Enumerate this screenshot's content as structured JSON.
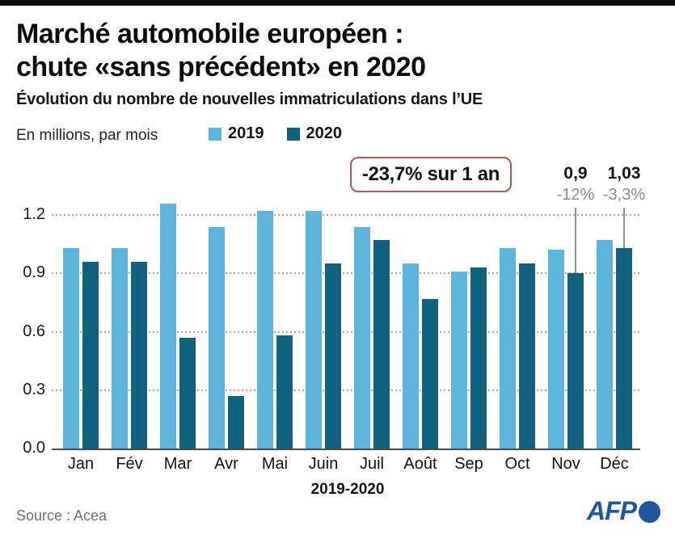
{
  "header": {
    "title_line1": "Marché automobile européen :",
    "title_line2": "chute «sans précédent» en 2020",
    "subtitle": "Évolution du nombre de nouvelles immatriculations dans l’UE",
    "units_label": "En millions, par mois"
  },
  "legend": {
    "items": [
      {
        "label": "2019",
        "color": "#5BB5DC"
      },
      {
        "label": "2020",
        "color": "#10607F"
      }
    ]
  },
  "annotation_box": {
    "text": "-23,7% sur 1 an",
    "border_color": "#B3594C"
  },
  "chart_data": {
    "type": "bar",
    "title": "Marché automobile européen : chute «sans précédent» en 2020",
    "categories": [
      "Jan",
      "Fév",
      "Mar",
      "Avr",
      "Mai",
      "Juin",
      "Juil",
      "Août",
      "Sep",
      "Oct",
      "Nov",
      "Déc"
    ],
    "series": [
      {
        "name": "2019",
        "color": "#5BB5DC",
        "values": [
          1.03,
          1.03,
          1.26,
          1.14,
          1.22,
          1.22,
          1.14,
          0.95,
          0.91,
          1.03,
          1.02,
          1.07
        ]
      },
      {
        "name": "2020",
        "color": "#10607F",
        "values": [
          0.96,
          0.96,
          0.57,
          0.27,
          0.58,
          0.95,
          1.07,
          0.77,
          0.93,
          0.95,
          0.9,
          1.03
        ]
      }
    ],
    "ylabel": "En millions, par mois",
    "xlabel": "2019-2020",
    "yticks": [
      1.2,
      0.9,
      0.6,
      0.3,
      0.0
    ],
    "ylim": [
      0,
      1.35
    ],
    "grid": "dotted-horizontal",
    "legend_position": "top",
    "callouts": [
      {
        "month_index": 10,
        "series": "2020",
        "y": 0.9,
        "value_label": "0,9",
        "pct_label": "-12%"
      },
      {
        "month_index": 11,
        "series": "2020",
        "y": 1.03,
        "value_label": "1,03",
        "pct_label": "-3,3%"
      }
    ],
    "annotation": "-23,7% sur 1 an"
  },
  "x_axis_title": "2019-2020",
  "footer": {
    "source": "Source : Acea",
    "logo_text": "AFP"
  }
}
